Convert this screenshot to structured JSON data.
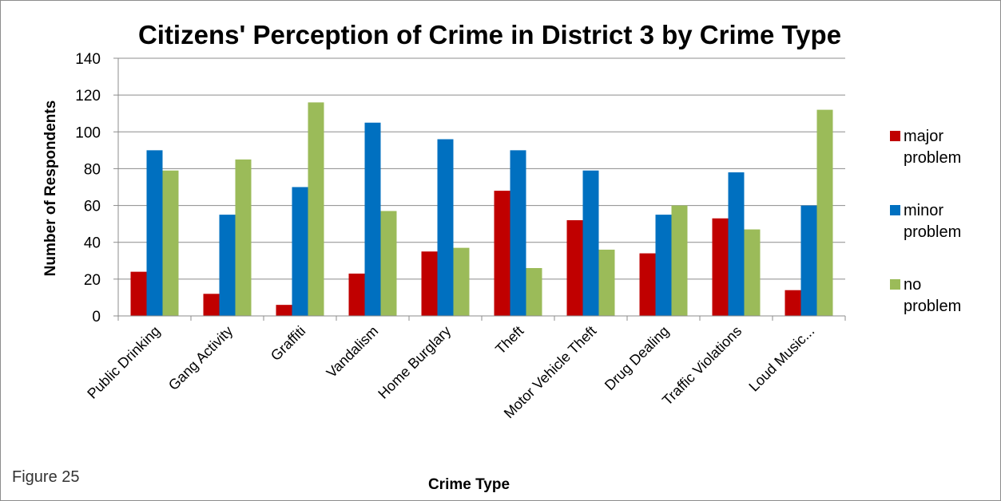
{
  "caption": "Figure 25",
  "chart_data": {
    "type": "bar",
    "title": "Citizens' Perception of Crime in District 3 by Crime Type",
    "xlabel": "Crime Type",
    "ylabel": "Number of Respondents",
    "ylim": [
      0,
      140
    ],
    "yticks": [
      0,
      20,
      40,
      60,
      80,
      100,
      120,
      140
    ],
    "grid": true,
    "legend_position": "right",
    "categories": [
      "Public Drinking",
      "Gang Activity",
      "Graffiti",
      "Vandalism",
      "Home Burglary",
      "Theft",
      "Motor Vehicle Theft",
      "Drug Dealing",
      "Traffic Violations",
      "Loud Music..."
    ],
    "series": [
      {
        "name": "major problem",
        "legend_lines": [
          "major",
          "problem"
        ],
        "color": "#c00000",
        "values": [
          24,
          12,
          6,
          23,
          35,
          68,
          52,
          34,
          53,
          14
        ]
      },
      {
        "name": "minor problem",
        "legend_lines": [
          "minor",
          "problem"
        ],
        "color": "#0070c0",
        "values": [
          90,
          55,
          70,
          105,
          96,
          90,
          79,
          55,
          78,
          60
        ]
      },
      {
        "name": "no problem",
        "legend_lines": [
          "no",
          "problem"
        ],
        "color": "#9bbb59",
        "values": [
          79,
          85,
          116,
          57,
          37,
          26,
          36,
          60,
          47,
          112
        ]
      }
    ]
  }
}
